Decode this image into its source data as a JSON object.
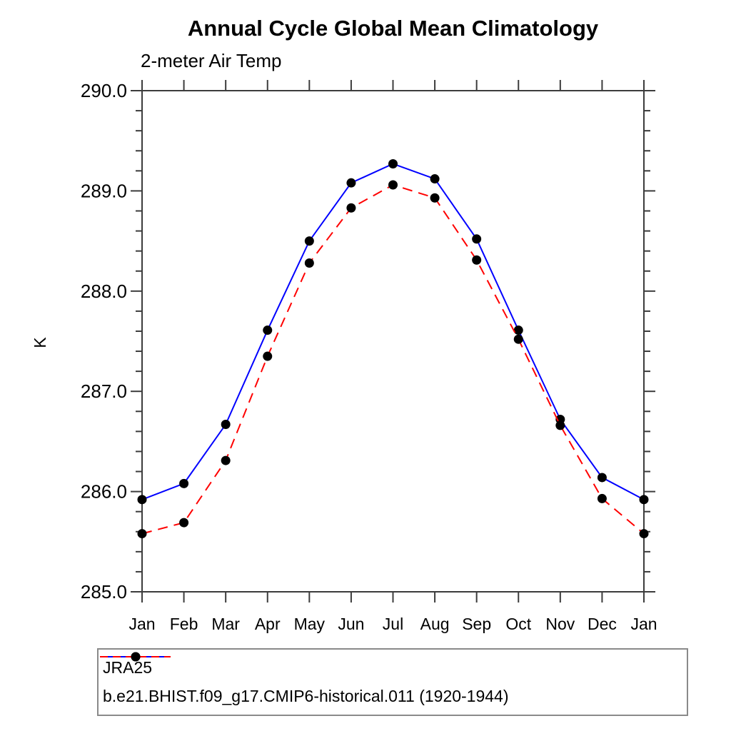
{
  "title": "Annual Cycle Global Mean Climatology",
  "subtitle": "2-meter Air Temp",
  "ylabel": "K",
  "colors": {
    "series1": "#0000ff",
    "series2": "#ff0000",
    "marker": "#000000",
    "axis": "#3c3c3c",
    "legend_border": "#8a8a8a"
  },
  "chart_data": {
    "type": "line",
    "title": "Annual Cycle Global Mean Climatology",
    "subtitle": "2-meter Air Temp",
    "xlabel": "",
    "ylabel": "K",
    "categories": [
      "Jan",
      "Feb",
      "Mar",
      "Apr",
      "May",
      "Jun",
      "Jul",
      "Aug",
      "Sep",
      "Oct",
      "Nov",
      "Dec",
      "Jan"
    ],
    "ylim": [
      285.0,
      290.0
    ],
    "yticks_major": [
      285.0,
      286.0,
      287.0,
      288.0,
      289.0,
      290.0
    ],
    "ytick_minor_step": 0.2,
    "grid": false,
    "legend_position": "bottom",
    "series": [
      {
        "name": "JRA25",
        "color": "#0000ff",
        "line_style": "solid",
        "marker": "filled-circle",
        "marker_color": "#000000",
        "values": [
          285.92,
          286.08,
          286.67,
          287.61,
          288.5,
          289.08,
          289.27,
          289.12,
          288.52,
          287.61,
          286.72,
          286.14,
          285.92
        ]
      },
      {
        "name": "b.e21.BHIST.f09_g17.CMIP6-historical.011 (1920-1944)",
        "color": "#ff0000",
        "line_style": "dashed",
        "marker": "filled-circle",
        "marker_color": "#000000",
        "values": [
          285.58,
          285.69,
          286.31,
          287.35,
          288.28,
          288.83,
          289.06,
          288.93,
          288.31,
          287.52,
          286.66,
          285.93,
          285.58
        ]
      }
    ]
  }
}
